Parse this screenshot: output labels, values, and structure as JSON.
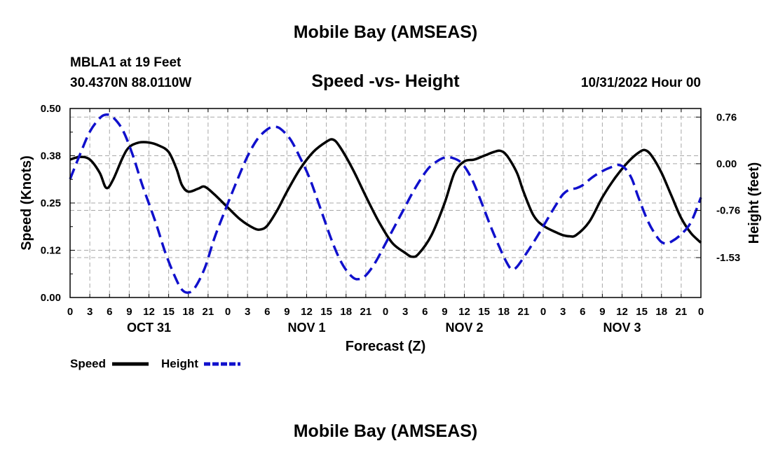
{
  "header": {
    "title": "Mobile Bay (AMSEAS)",
    "station": "MBLA1 at 19 Feet",
    "coords": "30.4370N  88.0110W",
    "subtitle": "Speed -vs- Height",
    "datetime": "10/31/2022 Hour 00"
  },
  "footer": {
    "title": "Mobile Bay (AMSEAS)"
  },
  "chart_data": {
    "type": "line",
    "title": "Speed -vs- Height",
    "xlabel": "Forecast (Z)",
    "ylabel": "Speed (Knots)",
    "y2label": "Height (feet)",
    "x_unit": "hours from 10/31/2022 00Z",
    "xlim": [
      0,
      96
    ],
    "ylim": [
      0,
      0.5
    ],
    "y2lim": [
      -2.18,
      0.9
    ],
    "grid": true,
    "x_tick_labels": [
      "0",
      "3",
      "6",
      "9",
      "12",
      "15",
      "18",
      "21",
      "0",
      "3",
      "6",
      "9",
      "12",
      "15",
      "18",
      "21",
      "0",
      "3",
      "6",
      "9",
      "12",
      "15",
      "18",
      "21",
      "0",
      "3",
      "6",
      "9",
      "12",
      "15",
      "18",
      "21",
      "0"
    ],
    "day_labels": [
      {
        "label": "OCT 31",
        "hour": 12
      },
      {
        "label": "NOV 1",
        "hour": 36
      },
      {
        "label": "NOV 2",
        "hour": 60
      },
      {
        "label": "NOV 3",
        "hour": 84
      }
    ],
    "y_ticks": [
      {
        "value": 0.0,
        "label": "0.00"
      },
      {
        "value": 0.125,
        "label": "0.12"
      },
      {
        "value": 0.25,
        "label": "0.25"
      },
      {
        "value": 0.375,
        "label": "0.38"
      },
      {
        "value": 0.5,
        "label": "0.50"
      }
    ],
    "y2_ticks": [
      {
        "value": 0.76,
        "label": "0.76"
      },
      {
        "value": 0.0,
        "label": "0.00"
      },
      {
        "value": -0.76,
        "label": "-0.76"
      },
      {
        "value": -1.53,
        "label": "-1.53"
      }
    ],
    "series": [
      {
        "name": "Speed",
        "axis": "left",
        "color": "#000000",
        "dash": "solid",
        "points": [
          [
            0,
            0.365
          ],
          [
            1.5,
            0.372
          ],
          [
            3,
            0.365
          ],
          [
            4.5,
            0.33
          ],
          [
            5.5,
            0.29
          ],
          [
            6.5,
            0.31
          ],
          [
            8,
            0.37
          ],
          [
            9,
            0.398
          ],
          [
            10.5,
            0.41
          ],
          [
            12,
            0.41
          ],
          [
            13.5,
            0.402
          ],
          [
            15,
            0.385
          ],
          [
            16.2,
            0.34
          ],
          [
            17,
            0.298
          ],
          [
            18,
            0.28
          ],
          [
            19.5,
            0.288
          ],
          [
            20.5,
            0.293
          ],
          [
            22,
            0.272
          ],
          [
            24,
            0.238
          ],
          [
            26,
            0.205
          ],
          [
            28,
            0.183
          ],
          [
            29,
            0.18
          ],
          [
            30,
            0.19
          ],
          [
            31.5,
            0.23
          ],
          [
            33,
            0.28
          ],
          [
            35,
            0.34
          ],
          [
            37,
            0.385
          ],
          [
            39,
            0.412
          ],
          [
            40,
            0.418
          ],
          [
            41,
            0.4
          ],
          [
            43,
            0.34
          ],
          [
            45,
            0.268
          ],
          [
            47,
            0.2
          ],
          [
            49,
            0.145
          ],
          [
            51,
            0.118
          ],
          [
            52,
            0.108
          ],
          [
            53,
            0.115
          ],
          [
            55,
            0.165
          ],
          [
            57,
            0.25
          ],
          [
            58.5,
            0.33
          ],
          [
            60,
            0.36
          ],
          [
            61.5,
            0.365
          ],
          [
            63,
            0.375
          ],
          [
            64.5,
            0.385
          ],
          [
            65.5,
            0.388
          ],
          [
            66.5,
            0.375
          ],
          [
            68,
            0.33
          ],
          [
            69,
            0.28
          ],
          [
            70.5,
            0.218
          ],
          [
            72,
            0.19
          ],
          [
            74,
            0.172
          ],
          [
            75,
            0.165
          ],
          [
            76,
            0.162
          ],
          [
            77,
            0.165
          ],
          [
            79,
            0.2
          ],
          [
            81,
            0.265
          ],
          [
            83,
            0.318
          ],
          [
            85,
            0.36
          ],
          [
            86.5,
            0.383
          ],
          [
            87.5,
            0.39
          ],
          [
            88.5,
            0.375
          ],
          [
            90,
            0.33
          ],
          [
            91.5,
            0.27
          ],
          [
            93,
            0.21
          ],
          [
            94.5,
            0.17
          ],
          [
            96,
            0.145
          ]
        ]
      },
      {
        "name": "Height",
        "axis": "right",
        "color": "#1010cc",
        "dash": "dashed",
        "points": [
          [
            0,
            -0.25
          ],
          [
            1.5,
            0.15
          ],
          [
            3,
            0.52
          ],
          [
            4.5,
            0.74
          ],
          [
            5.5,
            0.8
          ],
          [
            6.5,
            0.76
          ],
          [
            8,
            0.55
          ],
          [
            9.5,
            0.15
          ],
          [
            11,
            -0.35
          ],
          [
            13,
            -0.95
          ],
          [
            14.5,
            -1.45
          ],
          [
            16,
            -1.85
          ],
          [
            17,
            -2.05
          ],
          [
            18,
            -2.1
          ],
          [
            19,
            -2.02
          ],
          [
            20.5,
            -1.7
          ],
          [
            22,
            -1.2
          ],
          [
            24,
            -0.65
          ],
          [
            25.5,
            -0.25
          ],
          [
            27,
            0.12
          ],
          [
            28.5,
            0.4
          ],
          [
            30,
            0.56
          ],
          [
            31,
            0.6
          ],
          [
            32,
            0.57
          ],
          [
            33.5,
            0.4
          ],
          [
            35,
            0.1
          ],
          [
            36.5,
            -0.25
          ],
          [
            38,
            -0.7
          ],
          [
            40,
            -1.3
          ],
          [
            41.5,
            -1.65
          ],
          [
            43,
            -1.85
          ],
          [
            44,
            -1.88
          ],
          [
            45,
            -1.82
          ],
          [
            46.5,
            -1.6
          ],
          [
            48.5,
            -1.2
          ],
          [
            50.5,
            -0.8
          ],
          [
            52.5,
            -0.4
          ],
          [
            54.5,
            -0.08
          ],
          [
            56,
            0.05
          ],
          [
            57,
            0.1
          ],
          [
            58,
            0.1
          ],
          [
            59.5,
            0.02
          ],
          [
            61,
            -0.22
          ],
          [
            62.5,
            -0.6
          ],
          [
            64,
            -1.02
          ],
          [
            65.5,
            -1.4
          ],
          [
            66.5,
            -1.62
          ],
          [
            67.2,
            -1.72
          ],
          [
            68,
            -1.68
          ],
          [
            69.5,
            -1.45
          ],
          [
            71,
            -1.2
          ],
          [
            72.5,
            -0.93
          ],
          [
            74,
            -0.66
          ],
          [
            75,
            -0.5
          ],
          [
            76,
            -0.42
          ],
          [
            77,
            -0.4
          ],
          [
            78,
            -0.35
          ],
          [
            79.5,
            -0.22
          ],
          [
            81,
            -0.12
          ],
          [
            82.5,
            -0.05
          ],
          [
            83.5,
            -0.02
          ],
          [
            84.5,
            -0.08
          ],
          [
            85.5,
            -0.25
          ],
          [
            86.5,
            -0.55
          ],
          [
            88,
            -0.95
          ],
          [
            89.5,
            -1.22
          ],
          [
            90.5,
            -1.3
          ],
          [
            91.5,
            -1.27
          ],
          [
            93,
            -1.15
          ],
          [
            94.5,
            -0.95
          ],
          [
            96,
            -0.55
          ]
        ]
      }
    ]
  },
  "legend": {
    "items": [
      {
        "label": "Speed",
        "color": "#000000",
        "dash": "solid"
      },
      {
        "label": "Height",
        "color": "#1010cc",
        "dash": "dashed"
      }
    ]
  }
}
